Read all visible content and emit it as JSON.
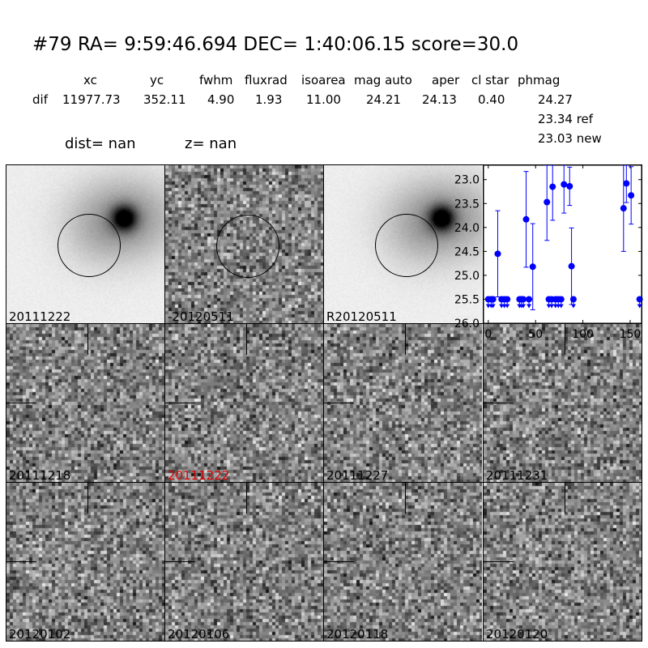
{
  "title": "#79   RA= 9:59:46.694 DEC= 1:40:06.15      score=30.0",
  "table": {
    "headers": [
      "xc",
      "yc",
      "fwhm",
      "fluxrad",
      "isoarea",
      "mag auto",
      "aper",
      "cl star",
      "phmag"
    ],
    "row_label": "dif",
    "values": [
      "11977.73",
      "352.11",
      "4.90",
      "1.93",
      "11.00",
      "24.21",
      "24.13",
      "0.40",
      "24.27"
    ],
    "ref_line": "23.34 ref",
    "new_line": "23.03 new"
  },
  "dist_text": "dist=   nan",
  "z_text": "z=   nan",
  "panels": [
    {
      "label": "20111222",
      "kind": "galaxy"
    },
    {
      "label": "-20120511",
      "kind": "noise"
    },
    {
      "label": "R20120511",
      "kind": "galaxy"
    },
    {
      "label": "20111218",
      "kind": "noise"
    },
    {
      "label": "20111222",
      "kind": "noise",
      "label_color": "#e00000"
    },
    {
      "label": "20111227",
      "kind": "noise"
    },
    {
      "label": "20111231",
      "kind": "noise"
    },
    {
      "label": "20120102",
      "kind": "noise"
    },
    {
      "label": "20120106",
      "kind": "noise"
    },
    {
      "label": "20120118",
      "kind": "noise"
    },
    {
      "label": "20120120",
      "kind": "noise"
    }
  ],
  "chart_data": {
    "type": "scatter",
    "title": "",
    "xlabel": "",
    "ylabel": "",
    "xlim": [
      -5,
      162
    ],
    "ylim": [
      26.0,
      22.7
    ],
    "x_ticks": [
      0,
      50,
      100,
      150
    ],
    "y_ticks": [
      23.0,
      23.5,
      24.0,
      24.5,
      25.0,
      25.5,
      26.0
    ],
    "x_tick_labels": [
      "0",
      "50",
      "100",
      "150"
    ],
    "y_tick_labels": [
      "23.0",
      "23.5",
      "24.0",
      "24.5",
      "25.0",
      "25.5",
      "26.0"
    ],
    "marker_color": "#0000ff",
    "detections": [
      {
        "x": 10,
        "y": 24.55,
        "err": 0.9
      },
      {
        "x": 40,
        "y": 23.83,
        "err": 1.0
      },
      {
        "x": 47,
        "y": 24.82,
        "err": 0.9
      },
      {
        "x": 62,
        "y": 23.47,
        "err": 0.8
      },
      {
        "x": 68,
        "y": 23.15,
        "err": 0.7
      },
      {
        "x": 80,
        "y": 23.1,
        "err": 0.6
      },
      {
        "x": 86,
        "y": 23.14,
        "err": 0.4
      },
      {
        "x": 88,
        "y": 24.81,
        "err": 0.8
      },
      {
        "x": 143,
        "y": 23.6,
        "err": 0.9
      },
      {
        "x": 146,
        "y": 23.08,
        "err": 0.4
      },
      {
        "x": 151,
        "y": 23.33,
        "err": 0.6
      }
    ],
    "upper_limits": [
      {
        "x": 0,
        "y": 25.5
      },
      {
        "x": 3,
        "y": 25.5
      },
      {
        "x": 5,
        "y": 25.5
      },
      {
        "x": 14,
        "y": 25.5
      },
      {
        "x": 17,
        "y": 25.5
      },
      {
        "x": 20,
        "y": 25.5
      },
      {
        "x": 33,
        "y": 25.5
      },
      {
        "x": 35,
        "y": 25.5
      },
      {
        "x": 37,
        "y": 25.5
      },
      {
        "x": 43,
        "y": 25.5
      },
      {
        "x": 64,
        "y": 25.5
      },
      {
        "x": 67,
        "y": 25.5
      },
      {
        "x": 71,
        "y": 25.5
      },
      {
        "x": 74,
        "y": 25.5
      },
      {
        "x": 77,
        "y": 25.5
      },
      {
        "x": 90,
        "y": 25.5
      },
      {
        "x": 160,
        "y": 25.5
      }
    ]
  }
}
